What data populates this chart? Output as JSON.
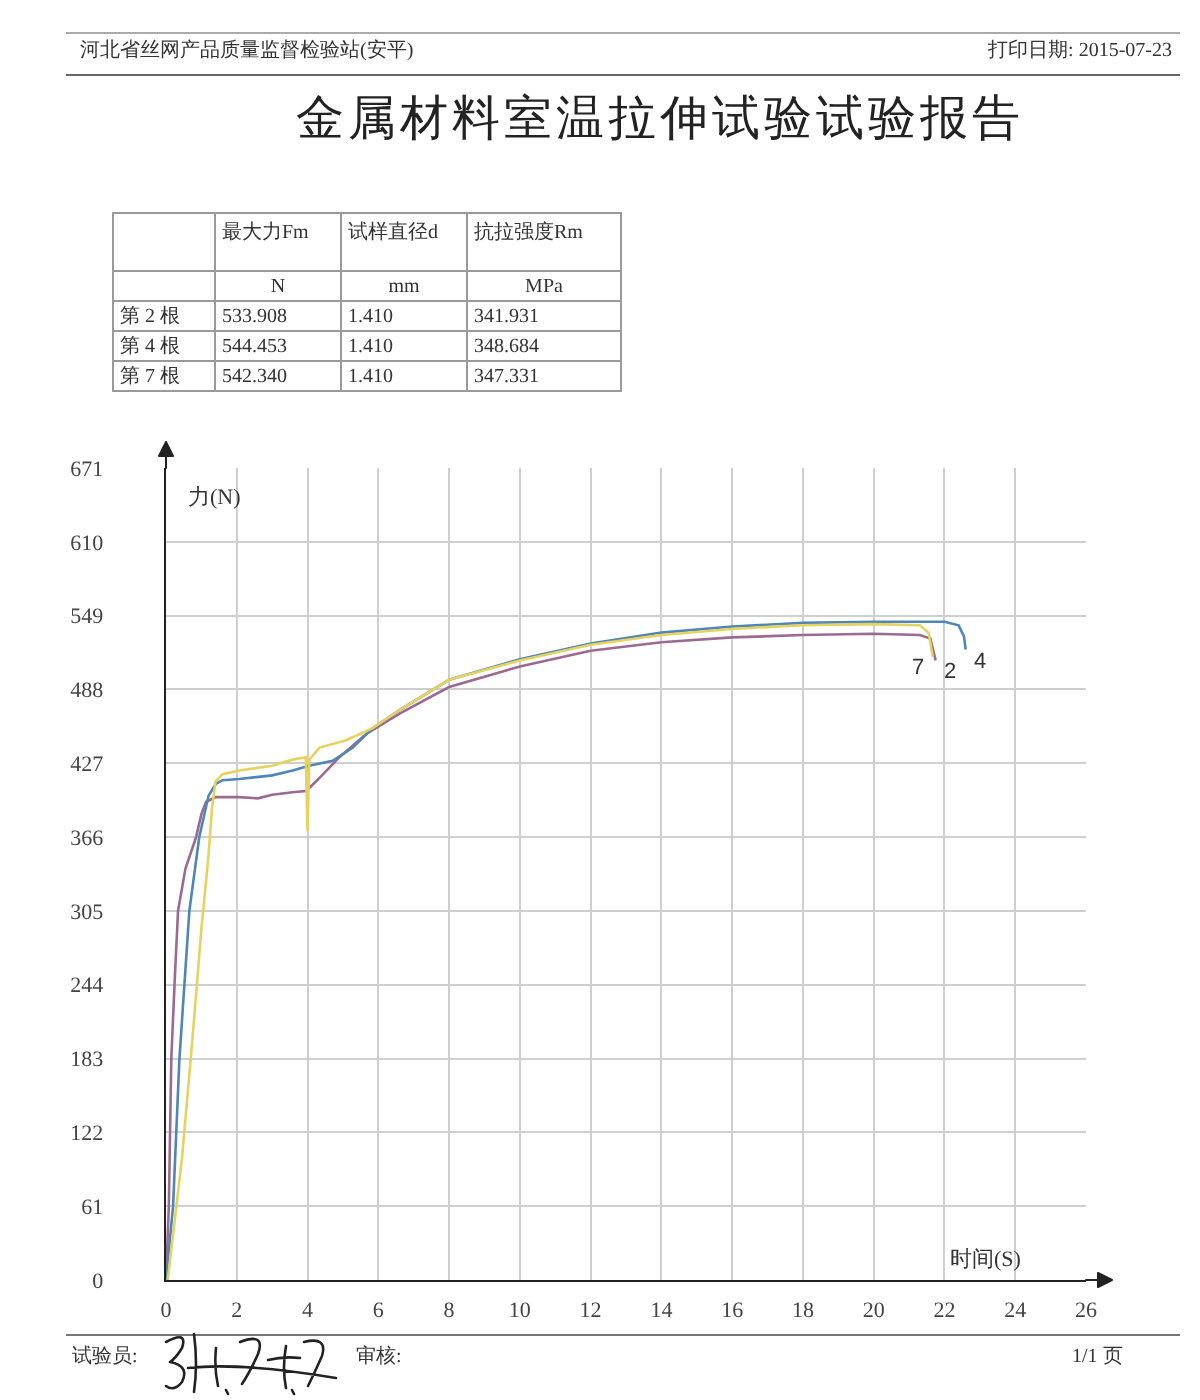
{
  "chart_data": {
    "type": "line",
    "title": "金属材料室温拉伸试验试验报告",
    "xlabel": "时间(S)",
    "ylabel": "力(N)",
    "xlim": [
      0,
      26
    ],
    "ylim": [
      0,
      671
    ],
    "xticks": [
      0,
      2,
      4,
      6,
      8,
      10,
      12,
      14,
      16,
      18,
      20,
      22,
      24,
      26
    ],
    "yticks": [
      0,
      61,
      122,
      183,
      244,
      305,
      366,
      427,
      488,
      549,
      610,
      671
    ],
    "grid": true,
    "series": [
      {
        "name": "2",
        "color": "#9c6a90",
        "x": [
          0,
          0.08,
          0.15,
          0.25,
          0.34,
          0.55,
          0.85,
          1.0,
          1.13,
          1.4,
          2.07,
          2.6,
          3.0,
          3.58,
          3.96,
          4.1,
          4.34,
          4.9,
          5.65,
          6.6,
          8,
          10,
          12,
          14,
          16,
          18,
          20,
          21.3,
          21.6,
          21.75
        ],
        "values": [
          0,
          61,
          183,
          250,
          305,
          340,
          366,
          385,
          395,
          399,
          399,
          398,
          401,
          403,
          404,
          408,
          415,
          432,
          451,
          468,
          490,
          507,
          520,
          527,
          531,
          533,
          534,
          533,
          530,
          512
        ]
      },
      {
        "name": "4",
        "color": "#4f86b8",
        "x": [
          0,
          0.2,
          0.38,
          0.66,
          0.94,
          1.2,
          1.41,
          1.6,
          2.07,
          3.0,
          3.58,
          4.05,
          4.71,
          5.28,
          5.84,
          6.6,
          8,
          10,
          12,
          14,
          16,
          18,
          20,
          22.0,
          22.4,
          22.55,
          22.6
        ],
        "values": [
          0,
          61,
          183,
          305,
          366,
          400,
          410,
          413,
          414,
          417,
          421,
          425,
          429,
          440,
          456,
          471,
          496,
          513,
          526,
          535,
          540,
          543,
          544,
          544,
          541,
          532,
          521
        ]
      },
      {
        "name": "7",
        "color": "#e6d25e",
        "x": [
          0.05,
          0.45,
          0.75,
          1.0,
          1.2,
          1.3,
          1.4,
          1.6,
          2.07,
          3.0,
          3.58,
          3.95,
          4.0,
          4.05,
          4.34,
          5.09,
          5.84,
          6.6,
          8,
          10,
          12,
          14,
          16,
          18,
          20,
          21.3,
          21.55,
          21.67
        ],
        "values": [
          0,
          100,
          200,
          290,
          350,
          390,
          412,
          418,
          421,
          425,
          430,
          432,
          371,
          430,
          440,
          446,
          456,
          471,
          496,
          512,
          525,
          533,
          538,
          541,
          542,
          541,
          535,
          515
        ]
      }
    ],
    "annotations": [
      "河北省丝网产品质量监督检验站(安平)",
      "打印日期: 2015-07-23",
      "最大力Fm",
      "试样直径d",
      "抗拉强度Rm",
      "N",
      "mm",
      "MPa",
      "第 2 根",
      "533.908",
      "1.410",
      "341.931",
      "第 4 根",
      "544.453",
      "1.410",
      "348.684",
      "第 7 根",
      "542.340",
      "1.410",
      "347.331",
      "试验员:",
      "审核:",
      "1/1 页"
    ]
  }
}
